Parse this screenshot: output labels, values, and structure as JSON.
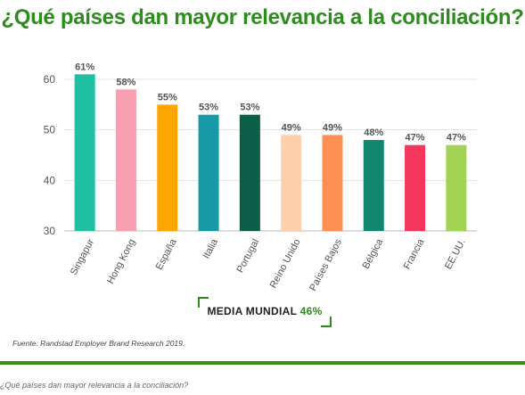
{
  "title": "¿Qué países dan mayor relevancia a la conciliación?",
  "chart_data": {
    "type": "bar",
    "categories": [
      "Singapur",
      "Hong Kong",
      "España",
      "Italia",
      "Portugal",
      "Reino Unido",
      "Países Bajos",
      "Bélgica",
      "Francia",
      "EE.UU."
    ],
    "values": [
      61,
      58,
      55,
      53,
      53,
      49,
      49,
      48,
      47,
      47
    ],
    "value_labels": [
      "61%",
      "58%",
      "55%",
      "53%",
      "53%",
      "49%",
      "49%",
      "48%",
      "47%",
      "47%"
    ],
    "colors": [
      "#1fbfa1",
      "#f7a1b0",
      "#ffa500",
      "#1899a6",
      "#0b5e48",
      "#ffcfaa",
      "#ff9055",
      "#12876f",
      "#f5365c",
      "#a3d354"
    ],
    "yticks": [
      "30",
      "40",
      "50",
      "60"
    ],
    "ylim": [
      30,
      65
    ],
    "grid": true,
    "xlabel": "",
    "ylabel": ""
  },
  "media": {
    "label": "MEDIA MUNDIAL",
    "value": "46%"
  },
  "source": "Fuente: Randstad Employer Brand Research 2019.",
  "caption": "¿Qué países dan mayor relevancia a la conciliación?"
}
